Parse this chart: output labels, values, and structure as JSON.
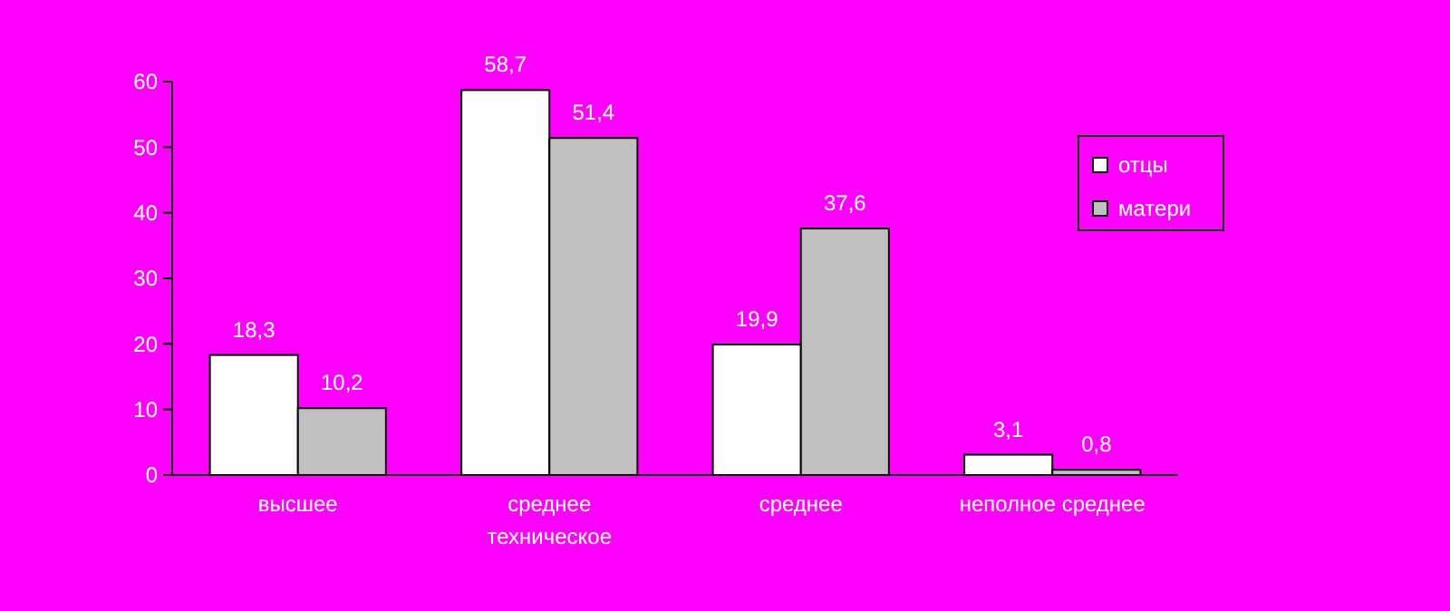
{
  "chart_data": {
    "type": "bar",
    "categories": [
      "высшее",
      "среднее\nтехническое",
      "среднее",
      "неполное среднее"
    ],
    "series": [
      {
        "name": "отцы",
        "color": "#ffffff",
        "values": [
          18.3,
          58.7,
          19.9,
          3.1
        ],
        "value_labels": [
          "18,3",
          "58,7",
          "19,9",
          "3,1"
        ]
      },
      {
        "name": "матери",
        "color": "#c0c0c0",
        "values": [
          10.2,
          51.4,
          37.6,
          0.8
        ],
        "value_labels": [
          "10,2",
          "51,4",
          "37,6",
          "0,8"
        ]
      }
    ],
    "ylim": [
      0,
      60
    ],
    "yticks": [
      0,
      10,
      20,
      30,
      40,
      50,
      60
    ],
    "grid": false,
    "legend": "top right"
  }
}
